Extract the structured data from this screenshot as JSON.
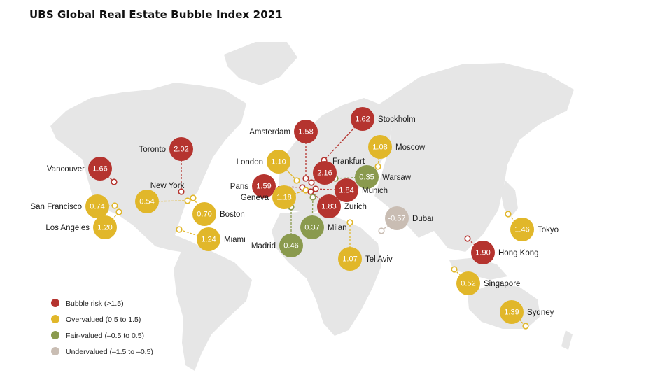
{
  "title": "UBS Global Real Estate Bubble Index 2021",
  "categories": {
    "bubble": {
      "label": "Bubble risk (>1.5)",
      "color": "#b5342f"
    },
    "overvalued": {
      "label": "Overvalued (0.5 to 1.5)",
      "color": "#e1b72a"
    },
    "fair": {
      "label": "Fair-valued (–0.5 to 0.5)",
      "color": "#8a9a4e"
    },
    "undervalued": {
      "label": "Undervalued (–1.5 to –0.5)",
      "color": "#c9bdb3"
    }
  },
  "legend_order": [
    "bubble",
    "overvalued",
    "fair",
    "undervalued"
  ],
  "cities": [
    {
      "name": "Vancouver",
      "value": "1.66",
      "category": "bubble"
    },
    {
      "name": "Toronto",
      "value": "2.02",
      "category": "bubble"
    },
    {
      "name": "New York",
      "value": "0.54",
      "category": "overvalued"
    },
    {
      "name": "Boston",
      "value": "0.70",
      "category": "overvalued"
    },
    {
      "name": "San Francisco",
      "value": "0.74",
      "category": "overvalued"
    },
    {
      "name": "Los Angeles",
      "value": "1.20",
      "category": "overvalued"
    },
    {
      "name": "Miami",
      "value": "1.24",
      "category": "overvalued"
    },
    {
      "name": "Amsterdam",
      "value": "1.58",
      "category": "bubble"
    },
    {
      "name": "Stockholm",
      "value": "1.62",
      "category": "bubble"
    },
    {
      "name": "London",
      "value": "1.10",
      "category": "overvalued"
    },
    {
      "name": "Frankfurt",
      "value": "2.16",
      "category": "bubble"
    },
    {
      "name": "Moscow",
      "value": "1.08",
      "category": "overvalued"
    },
    {
      "name": "Warsaw",
      "value": "0.35",
      "category": "fair"
    },
    {
      "name": "Paris",
      "value": "1.59",
      "category": "bubble"
    },
    {
      "name": "Munich",
      "value": "1.84",
      "category": "bubble"
    },
    {
      "name": "Geneva",
      "value": "1.18",
      "category": "overvalued"
    },
    {
      "name": "Zurich",
      "value": "1.83",
      "category": "bubble"
    },
    {
      "name": "Milan",
      "value": "0.37",
      "category": "fair"
    },
    {
      "name": "Madrid",
      "value": "0.46",
      "category": "fair"
    },
    {
      "name": "Dubai",
      "value": "-0.57",
      "category": "undervalued"
    },
    {
      "name": "Tel Aviv",
      "value": "1.07",
      "category": "overvalued"
    },
    {
      "name": "Hong Kong",
      "value": "1.90",
      "category": "bubble"
    },
    {
      "name": "Tokyo",
      "value": "1.46",
      "category": "overvalued"
    },
    {
      "name": "Singapore",
      "value": "0.52",
      "category": "overvalued"
    },
    {
      "name": "Sydney",
      "value": "1.39",
      "category": "overvalued"
    }
  ]
}
